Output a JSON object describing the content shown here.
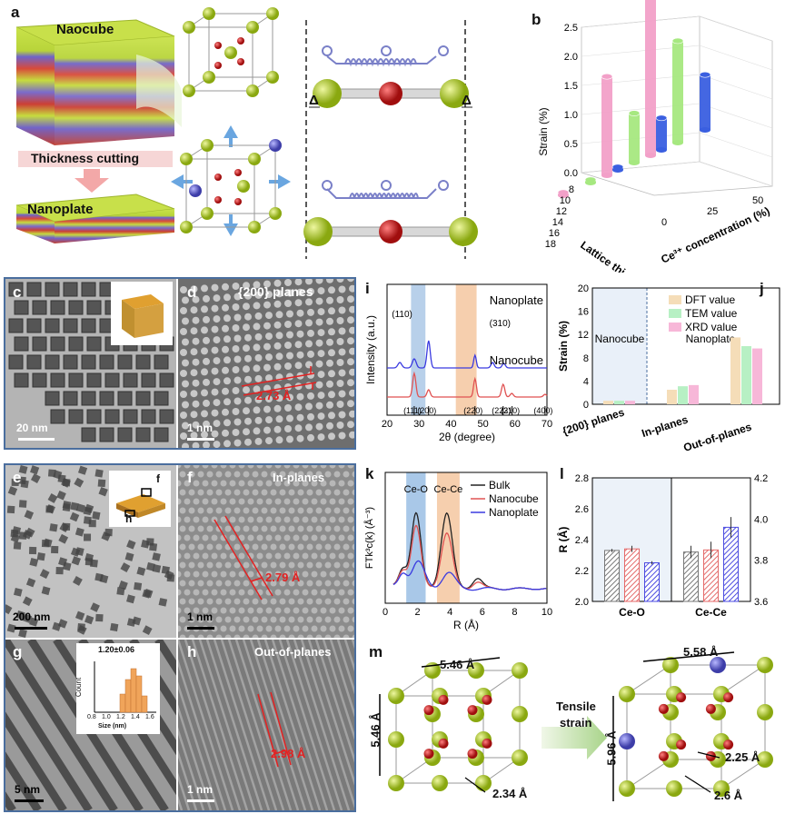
{
  "panel_letters": {
    "a": "a",
    "b": "b",
    "c": "c",
    "d": "d",
    "e": "e",
    "f": "f",
    "g": "g",
    "h": "h",
    "i": "i",
    "j": "j",
    "k": "k",
    "l": "l",
    "m": "m"
  },
  "panel_a": {
    "top_label": "Naocube",
    "mid_label": "Thickness cutting",
    "bottom_label": "Nanoplate",
    "delta": "Δ"
  },
  "panel_c": {
    "scale": "20 nm"
  },
  "panel_d": {
    "title": "{200} planes",
    "spacing": "2.73 Å",
    "scale": "1 nm"
  },
  "panel_e": {
    "scale": "200 nm",
    "inset_f": "f",
    "inset_h": "h"
  },
  "panel_f": {
    "title": "In-planes",
    "spacing": "2.79 Å",
    "scale": "1 nm"
  },
  "panel_g": {
    "scale": "5 nm",
    "inset_title": "1.20±0.06",
    "inset_ylabel": "Count",
    "inset_xlabel": "Size (nm)",
    "inset_ticks": [
      "0.8",
      "1.0",
      "1.2",
      "1.4",
      "1.6"
    ]
  },
  "panel_h": {
    "title": "Out-of-planes",
    "spacing": "2.98 Å",
    "scale": "1 nm"
  },
  "panel_m": {
    "cube1_top": "5.46 Å",
    "cube1_left": "5.46 Å",
    "cube1_bond": "2.34 Å",
    "arrow_label_1": "Tensile",
    "arrow_label_2": "strain",
    "cube2_top": "5.58 Å",
    "cube2_left": "5.96 Å",
    "cube2_bond1": "2.25 Å",
    "cube2_bond2": "2.6 Å"
  },
  "colors": {
    "frame": "#4a6e9e",
    "ce": "#a8c81e",
    "o": "#d41f1f",
    "pink": "#f2a0c8",
    "green": "#a6e880",
    "blue": "#3a5fe0",
    "dft": "#f5ddb8",
    "tem": "#b7f0c4",
    "xrd": "#f7b7d8",
    "bulk": "#222222",
    "nanocube": "#e05252",
    "nanoplate": "#3a3ae0"
  },
  "chart_data": [
    {
      "panel": "b",
      "type": "bar",
      "title": "",
      "zlabel": "Strain (%)",
      "xlabel": "Lattice thickness (ML)",
      "ylabel": "Ce³⁺ concentration (%)",
      "x_ticks": [
        "8",
        "10",
        "12",
        "14",
        "16",
        "18"
      ],
      "y_ticks": [
        "0",
        "25",
        "50"
      ],
      "z_ticks": [
        "0.0",
        "0.5",
        "1.0",
        "1.5",
        "2.0",
        "2.5"
      ],
      "series": [
        {
          "color": "pink",
          "values": [
            0.05,
            1.7,
            2.8
          ]
        },
        {
          "color": "green",
          "values": [
            0.05,
            0.85,
            1.75
          ]
        },
        {
          "color": "blue",
          "values": [
            0.05,
            0.55,
            0.95
          ]
        }
      ]
    },
    {
      "panel": "i",
      "type": "line",
      "xlabel": "2θ (degree)",
      "ylabel": "Intensity (a.u.)",
      "x_ticks": [
        "20",
        "30",
        "40",
        "50",
        "60",
        "70"
      ],
      "xlim": [
        20,
        70
      ],
      "series_labels": [
        "Nanoplate",
        "Nanocube"
      ],
      "peak_labels": [
        "(110)",
        "(310)"
      ],
      "ref_ticks": [
        "(111)",
        "(200)",
        "(220)",
        "(222)",
        "(310)",
        "(400)"
      ]
    },
    {
      "panel": "j",
      "type": "bar",
      "ylabel": "Strain (%)",
      "y_ticks": [
        "0",
        "4",
        "8",
        "12",
        "16",
        "20"
      ],
      "ylim": [
        0,
        20
      ],
      "categories": [
        "{200} planes",
        "In-planes",
        "Out-of-planes"
      ],
      "region_labels": [
        "Nanocube",
        "Nanoplate"
      ],
      "series": [
        {
          "name": "DFT value",
          "values": [
            0.6,
            2.5,
            11.5
          ]
        },
        {
          "name": "TEM value",
          "values": [
            0.6,
            3.1,
            10.0
          ]
        },
        {
          "name": "XRD value",
          "values": [
            0.6,
            3.3,
            9.6
          ]
        }
      ]
    },
    {
      "panel": "k",
      "type": "line",
      "xlabel": "R (Å)",
      "ylabel": "FTk³c(k) (Å⁻³)",
      "x_ticks": [
        "0",
        "2",
        "4",
        "6",
        "8",
        "10"
      ],
      "xlim": [
        0,
        10
      ],
      "region_labels": [
        "Ce-O",
        "Ce-Ce"
      ],
      "series": [
        {
          "name": "Bulk"
        },
        {
          "name": "Nanocube"
        },
        {
          "name": "Nanoplate"
        }
      ]
    },
    {
      "panel": "l",
      "type": "bar",
      "ylabel": "R (Å)",
      "y_ticks_left": [
        "2.0",
        "2.2",
        "2.4",
        "2.6",
        "2.8"
      ],
      "ylim_left": [
        2.0,
        2.8
      ],
      "y_ticks_right": [
        "3.6",
        "3.8",
        "4.0",
        "4.2"
      ],
      "ylim_right": [
        3.6,
        4.2
      ],
      "categories": [
        "Ce-O",
        "Ce-Ce"
      ],
      "series": [
        {
          "name": "Bulk",
          "values": [
            2.33,
            3.84
          ]
        },
        {
          "name": "Nanocube",
          "values": [
            2.34,
            3.85
          ]
        },
        {
          "name": "Nanoplate",
          "values": [
            2.25,
            3.96
          ]
        }
      ]
    }
  ]
}
